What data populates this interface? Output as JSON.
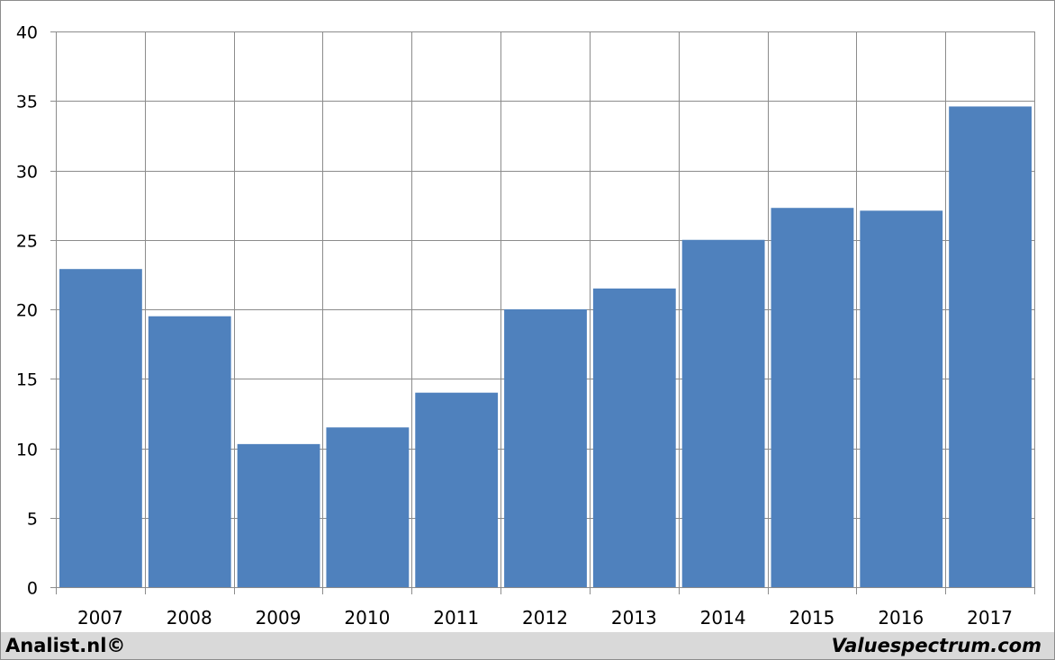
{
  "chart_data": {
    "type": "bar",
    "categories": [
      "2007",
      "2008",
      "2009",
      "2010",
      "2011",
      "2012",
      "2013",
      "2014",
      "2015",
      "2016",
      "2017"
    ],
    "values": [
      22.9,
      19.5,
      10.3,
      11.5,
      14.0,
      20.0,
      21.5,
      25.0,
      27.3,
      27.1,
      34.6
    ],
    "yticks": [
      0,
      5,
      10,
      15,
      20,
      25,
      30,
      35,
      40
    ],
    "ylim": [
      0,
      40
    ],
    "grid": true,
    "title": "",
    "xlabel": "",
    "ylabel": "",
    "bar_color": "#4f81bd",
    "grid_color": "#8c8c8c"
  },
  "footer": {
    "left_text": "Analist.nl©",
    "right_text": "Valuespectrum.com",
    "background": "#d9d9d9"
  }
}
